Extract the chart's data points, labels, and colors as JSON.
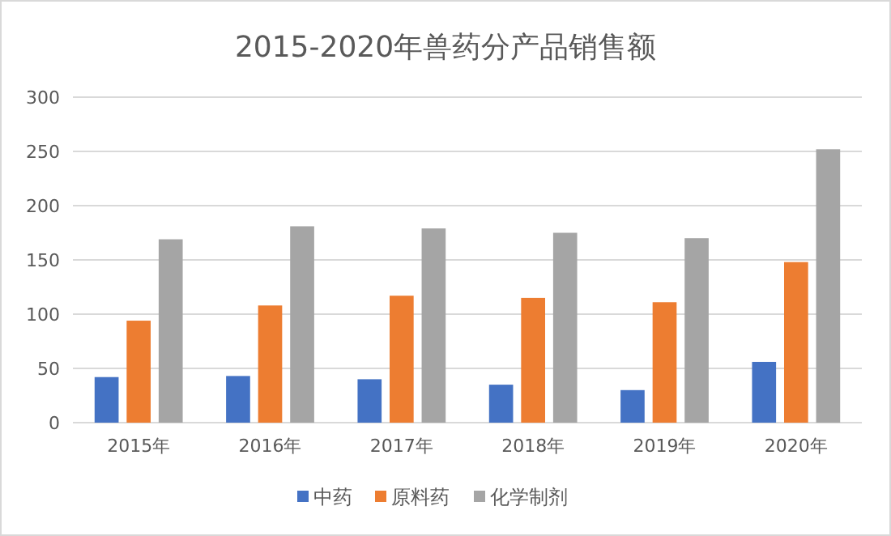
{
  "chart_data": {
    "type": "bar",
    "title": "2015-2020年兽药分产品销售额",
    "categories": [
      "2015年",
      "2016年",
      "2017年",
      "2018年",
      "2019年",
      "2020年"
    ],
    "series": [
      {
        "name": "中药",
        "color": "#4472c4",
        "values": [
          42,
          43,
          40,
          35,
          30,
          56
        ]
      },
      {
        "name": "原料药",
        "color": "#ed7d31",
        "values": [
          94,
          108,
          117,
          115,
          111,
          148
        ]
      },
      {
        "name": "化学制剂",
        "color": "#a5a5a5",
        "values": [
          169,
          181,
          179,
          175,
          170,
          252
        ]
      }
    ],
    "ylim": [
      0,
      300
    ],
    "yticks": [
      0,
      50,
      100,
      150,
      200,
      250,
      300
    ],
    "grid": "y",
    "legend": "bottom"
  }
}
